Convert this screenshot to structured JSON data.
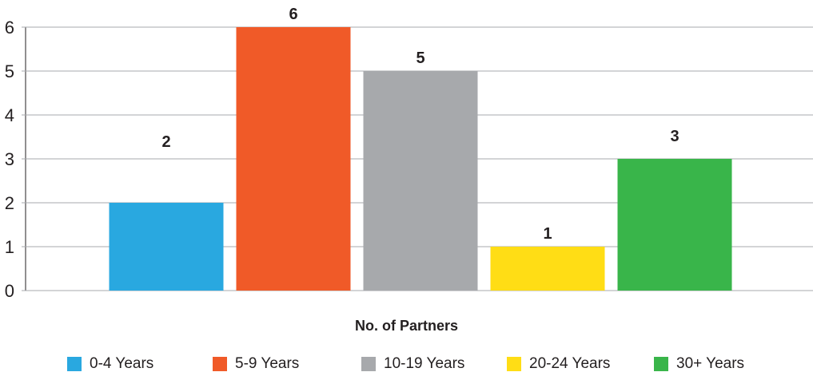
{
  "chart_data": {
    "type": "bar",
    "categories": [
      "0-4 Years",
      "5-9 Years",
      "10-19 Years",
      "20-24 Years",
      "30+ Years"
    ],
    "values": [
      2,
      6,
      5,
      1,
      3
    ],
    "colors": [
      "#29a8e0",
      "#f05a28",
      "#a7a9ac",
      "#ffdd15",
      "#39b54a"
    ],
    "xlabel": "No. of Partners",
    "ylabel": "",
    "ylim": [
      0,
      6
    ],
    "yticks": [
      "0",
      "1",
      "2",
      "3",
      "4",
      "5",
      "6"
    ],
    "data_labels": [
      "2",
      "6",
      "5",
      "1",
      "3"
    ],
    "grid": true,
    "legend_position": "bottom"
  }
}
